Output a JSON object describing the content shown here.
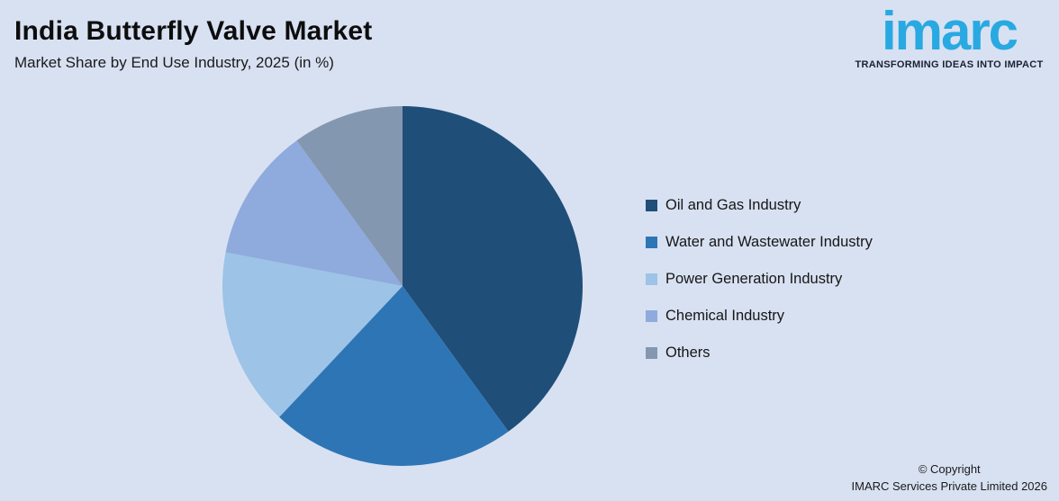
{
  "background_color": "#D8E1F2",
  "header": {
    "title": "India Butterfly Valve Market",
    "subtitle": "Market Share by End Use Industry, 2025 (in %)"
  },
  "logo": {
    "brand": "imarc",
    "tagline": "TRANSFORMING IDEAS INTO IMPACT",
    "brand_color": "#29A9E1",
    "tagline_color": "#1B2135"
  },
  "chart_data": {
    "type": "pie",
    "title": "India Butterfly Valve Market",
    "subtitle": "Market Share by End Use Industry, 2025 (in %)",
    "categories": [
      "Oil and Gas Industry",
      "Water and Wastewater Industry",
      "Power Generation Industry",
      "Chemical Industry",
      "Others"
    ],
    "values": [
      40,
      22,
      16,
      12,
      10
    ],
    "unit": "%",
    "colors": [
      "#1F4E79",
      "#2E75B6",
      "#9DC3E6",
      "#8FAADC",
      "#8497B0"
    ],
    "start_angle_deg": 0,
    "direction": "clockwise",
    "data_labels": false,
    "legend_position": "right"
  },
  "legend": {
    "items": [
      {
        "label": "Oil and Gas Industry",
        "color": "#1F4E79"
      },
      {
        "label": "Water and Wastewater Industry",
        "color": "#2E75B6"
      },
      {
        "label": "Power Generation Industry",
        "color": "#9DC3E6"
      },
      {
        "label": "Chemical Industry",
        "color": "#8FAADC"
      },
      {
        "label": "Others",
        "color": "#8497B0"
      }
    ]
  },
  "footer": {
    "line1": "© Copyright",
    "line2": "IMARC Services Private Limited 2026"
  }
}
